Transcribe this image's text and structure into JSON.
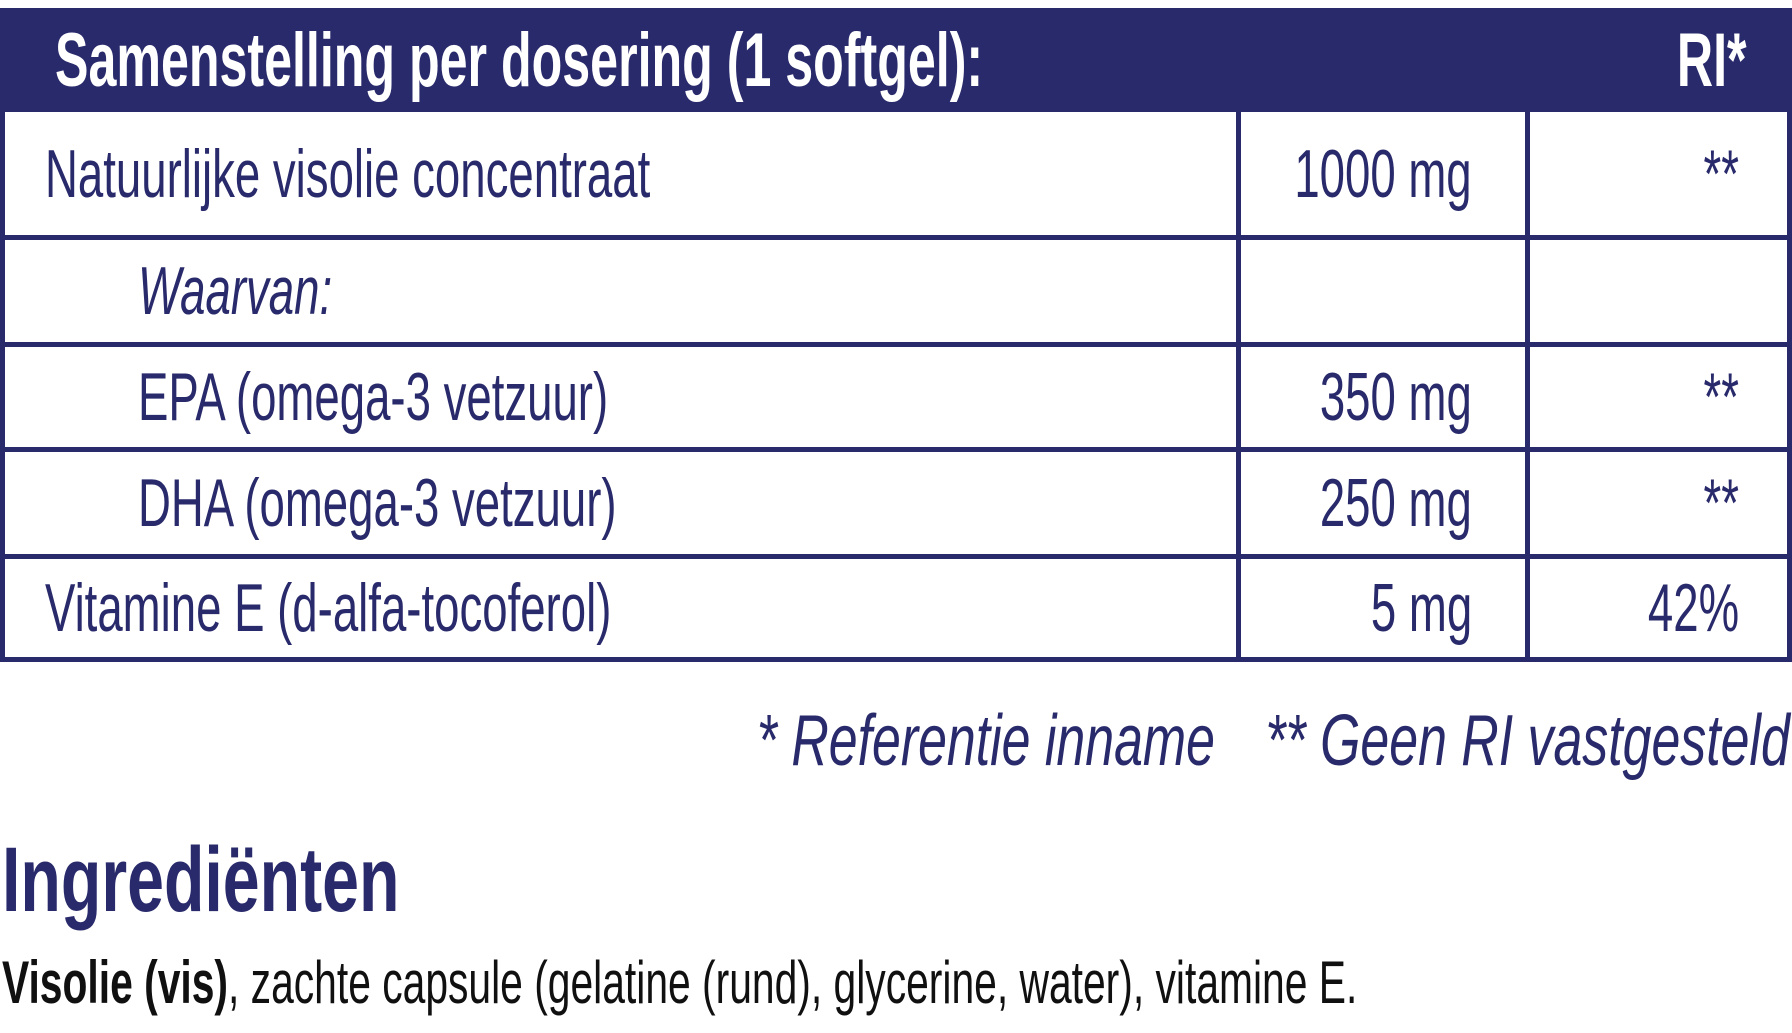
{
  "header": {
    "title": "Samenstelling per dosering (1 softgel):",
    "ri_label": "RI*"
  },
  "table": {
    "rows": [
      {
        "label": "Natuurlijke visolie concentraat",
        "amount": "1000 mg",
        "ri": "**"
      },
      {
        "label": "Waarvan:",
        "amount": "",
        "ri": ""
      },
      {
        "label": "EPA (omega-3 vetzuur)",
        "amount": "350 mg",
        "ri": "**"
      },
      {
        "label": "DHA (omega-3 vetzuur)",
        "amount": "250 mg",
        "ri": "**"
      },
      {
        "label": "Vitamine E (d-alfa-tocoferol)",
        "amount": "5 mg",
        "ri": "42%"
      }
    ]
  },
  "footnote": {
    "reference": "* Referentie inname",
    "no_ri": "** Geen RI vastgesteld"
  },
  "ingredients": {
    "heading": "Ingrediënten",
    "bold": "Visolie (vis)",
    "rest": ", zachte capsule (gelatine (rund), glycerine, water), vitamine E."
  },
  "colors": {
    "navy": "#292a6b",
    "text_black": "#101010",
    "background": "#ffffff"
  }
}
